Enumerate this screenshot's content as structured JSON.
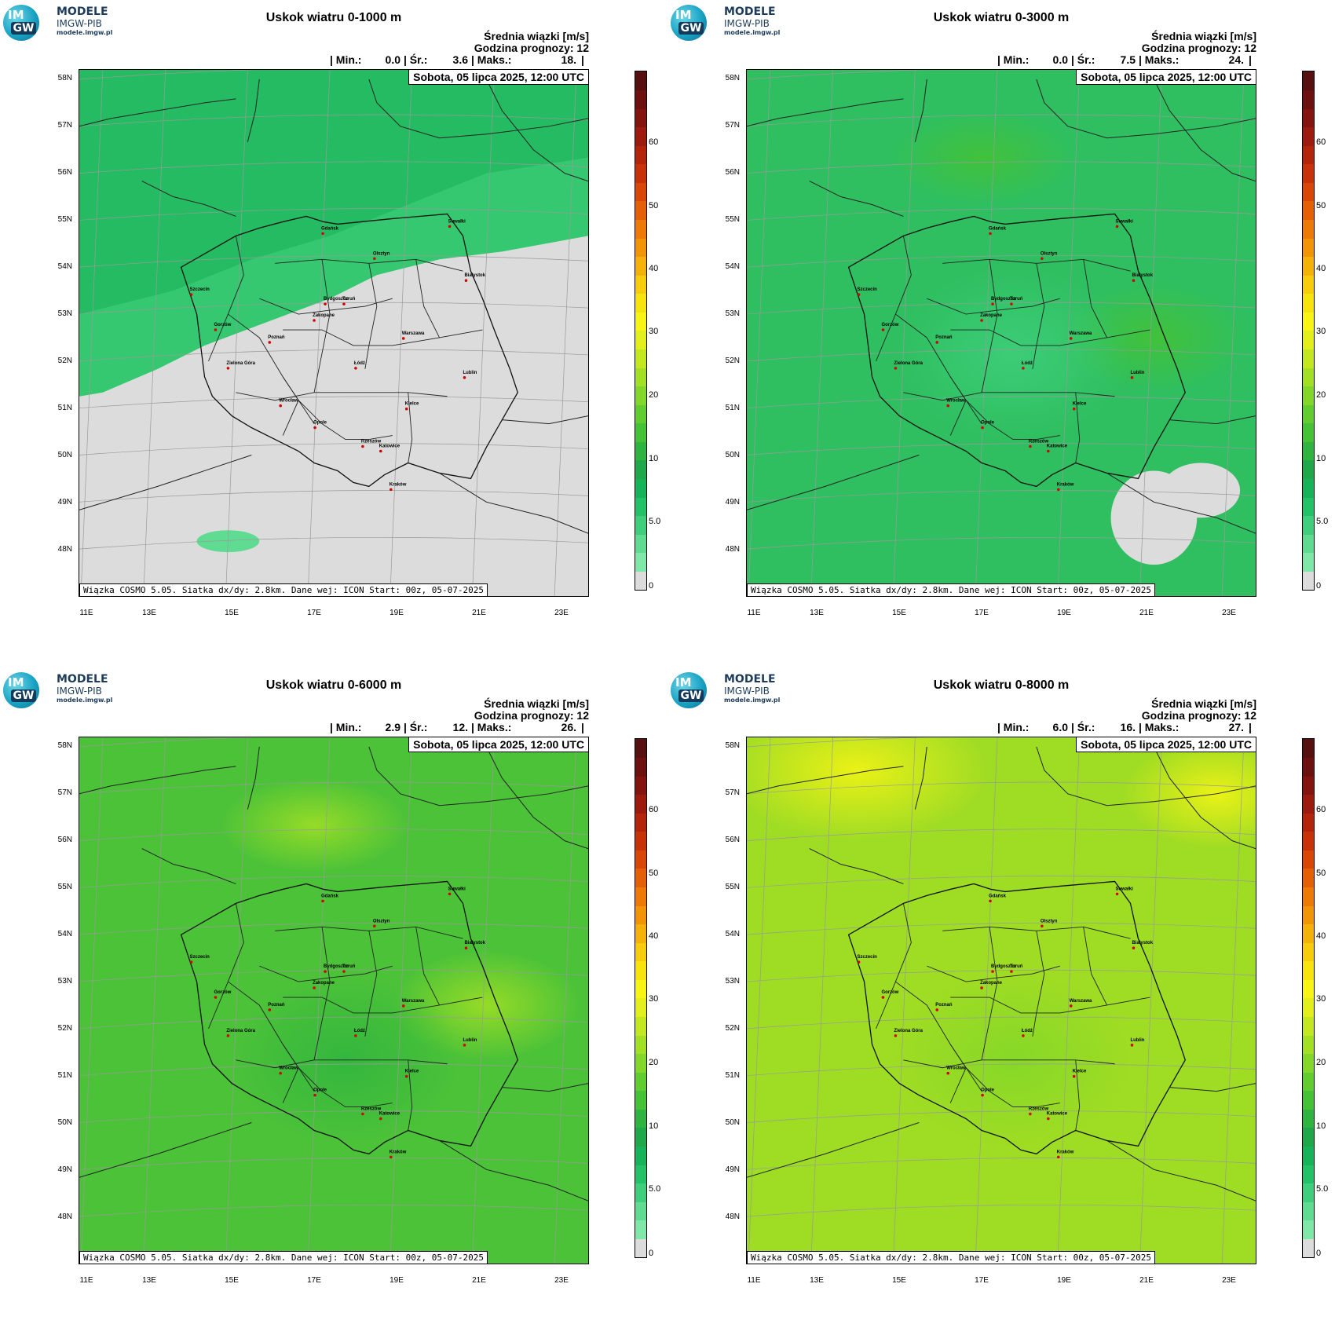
{
  "logo": {
    "circle_top": "IM",
    "circle_bottom": "GW",
    "line1": "MODELE",
    "line2": "IMGW-PIB",
    "line3": "modele.imgw.pl"
  },
  "shared": {
    "subtitle": "Średnia wiązki [m/s]",
    "forecast_hour": "Godzina prognozy: 12",
    "date": "Sobota, 05 lipca 2025, 12:00 UTC",
    "footer": "Wiązka COSMO 5.05. Siatka dx/dy: 2.8km. Dane wej: ICON Start: 00z, 05-07-2025",
    "lat_labels": [
      "58N",
      "57N",
      "56N",
      "55N",
      "54N",
      "53N",
      "52N",
      "51N",
      "50N",
      "49N",
      "48N"
    ],
    "lon_labels": [
      "11E",
      "13E",
      "15E",
      "17E",
      "19E",
      "21E",
      "23E"
    ],
    "colorbar_ticks": [
      "60",
      "50",
      "40",
      "30",
      "20",
      "10",
      "5.0",
      "0"
    ],
    "colorbar_colors": [
      "#dcdcdc",
      "#7fe8a9",
      "#5fdc92",
      "#3fcf7c",
      "#22c268",
      "#17b35a",
      "#1ea84a",
      "#2fb43f",
      "#45c235",
      "#62cd2e",
      "#82d728",
      "#a3e024",
      "#c4e81f",
      "#e3ef1a",
      "#f8f514",
      "#f8e40d",
      "#f7cc0a",
      "#f4b108",
      "#f19506",
      "#ec7a05",
      "#e55f05",
      "#d94606",
      "#c93208",
      "#b4240b",
      "#9c1a0e",
      "#84140f",
      "#6c110f",
      "#55100f"
    ],
    "cities": [
      "Gdańsk",
      "Olsztyn",
      "Suwałki",
      "Szczecin",
      "Białystok",
      "Bydgoszcz",
      "Toruń",
      "Gorzów",
      "Poznań",
      "Warszawa",
      "Zielona Góra",
      "Łódź",
      "Lublin",
      "Wrocław",
      "Kielce",
      "Opole",
      "Rzeszów",
      "Katowice",
      "Kraków",
      "Zakopane"
    ]
  },
  "panels": [
    {
      "title": "Uskok wiatru 0-1000 m",
      "stats": {
        "min_label": "| Min.:",
        "min": "0.0",
        "avg_label": "| Śr.:",
        "avg": "3.6",
        "max_label": "| Maks.:",
        "max": "18.",
        "end": "|"
      },
      "dominant_level": 1.5,
      "base_color": "#dcdcdc"
    },
    {
      "title": "Uskok wiatru 0-3000 m",
      "stats": {
        "min_label": "| Min.:",
        "min": "0.0",
        "avg_label": "| Śr.:",
        "avg": "7.5",
        "max_label": "| Maks.:",
        "max": "24.",
        "end": "|"
      },
      "dominant_level": 7.5,
      "base_color": "#2fbf60"
    },
    {
      "title": "Uskok wiatru 0-6000 m",
      "stats": {
        "min_label": "| Min.:",
        "min": "2.9",
        "avg_label": "| Śr.:",
        "avg": "12.",
        "max_label": "| Maks.:",
        "max": "26.",
        "end": "|"
      },
      "dominant_level": 12,
      "base_color": "#4cc238"
    },
    {
      "title": "Uskok wiatru 0-8000 m",
      "stats": {
        "min_label": "| Min.:",
        "min": "6.0",
        "avg_label": "| Śr.:",
        "avg": "16.",
        "max_label": "| Maks.:",
        "max": "27.",
        "end": "|"
      },
      "dominant_level": 16,
      "base_color": "#9fdc24"
    }
  ]
}
